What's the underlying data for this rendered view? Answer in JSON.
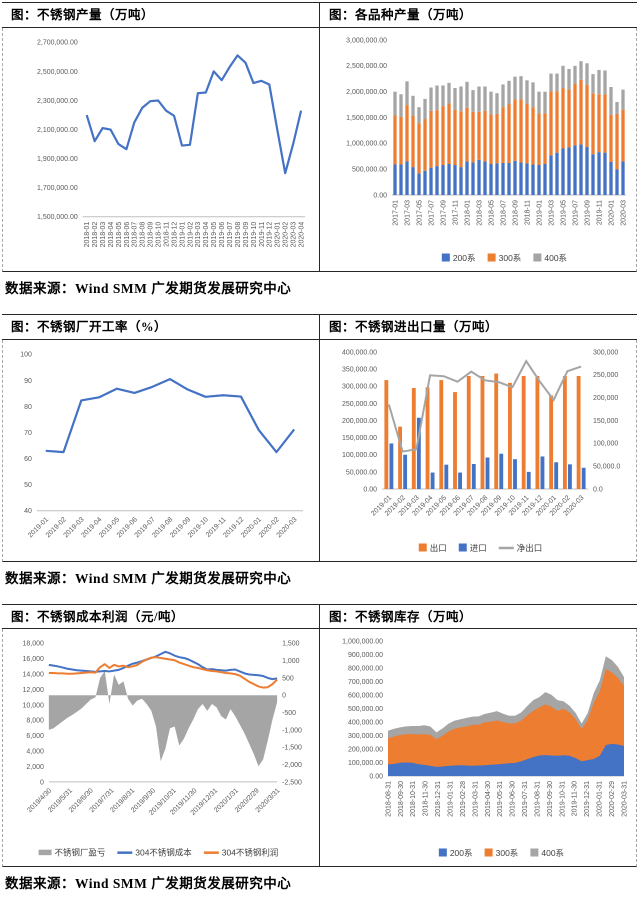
{
  "colors": {
    "blue": "#4472C4",
    "orange": "#ED7D31",
    "gray": "#A5A5A5",
    "axis_text": "#595959",
    "axis_line": "#BFBFBF"
  },
  "sections": [
    {
      "source": "数据来源：Wind SMM 广发期货发展研究中心"
    },
    {
      "source": "数据来源：Wind SMM 广发期货发展研究中心"
    },
    {
      "source": "数据来源：Wind SMM 广发期货发展研究中心"
    }
  ],
  "chart_data": [
    {
      "title": "图：不锈钢产量（万吨）",
      "type": "line",
      "x_rot": 90,
      "label_every": 1,
      "layout": {
        "margins": {
          "l": 80,
          "r": 14,
          "t": 14,
          "b": 54
        }
      },
      "categories": [
        "2018-01",
        "2018-02",
        "2018-03",
        "2018-04",
        "2018-05",
        "2018-06",
        "2018-07",
        "2018-08",
        "2018-09",
        "2018-10",
        "2018-11",
        "2018-12",
        "2019-01",
        "2019-02",
        "2019-03",
        "2019-04",
        "2019-05",
        "2019-06",
        "2019-07",
        "2019-08",
        "2019-09",
        "2019-10",
        "2019-11",
        "2019-12",
        "2020-01",
        "2020-02",
        "2020-03",
        "2020-04"
      ],
      "y_left": {
        "min": 1500000,
        "max": 2700000,
        "labels": [
          "2,700,000.00",
          "2,500,000.00",
          "2,300,000.00",
          "2,100,000.00",
          "1,900,000.00",
          "1,700,000.00",
          "1,500,000.00"
        ]
      },
      "series": [
        {
          "name": "不锈钢产量",
          "color": "blue",
          "values": [
            2200000,
            2020000,
            2110000,
            2100000,
            2000000,
            1965000,
            2150000,
            2250000,
            2295000,
            2300000,
            2230000,
            2195000,
            1990000,
            1995000,
            2350000,
            2355000,
            2500000,
            2440000,
            2530000,
            2610000,
            2560000,
            2420000,
            2435000,
            2410000,
            2100000,
            1800000,
            2000000,
            2230000
          ]
        }
      ],
      "legend": null
    },
    {
      "title": "图：各品种产量（万吨）",
      "type": "stacked_bar",
      "x_rot": 90,
      "label_every": 2,
      "layout": {
        "margins": {
          "l": 72,
          "r": 10,
          "t": 12,
          "b": 76
        }
      },
      "categories": [
        "2017-01",
        "2017-02",
        "2017-03",
        "2017-04",
        "2017-05",
        "2017-06",
        "2017-07",
        "2017-08",
        "2017-09",
        "2017-10",
        "2017-11",
        "2017-12",
        "2018-01",
        "2018-02",
        "2018-03",
        "2018-04",
        "2018-05",
        "2018-06",
        "2018-07",
        "2018-08",
        "2018-09",
        "2018-10",
        "2018-11",
        "2018-12",
        "2019-01",
        "2019-02",
        "2019-03",
        "2019-04",
        "2019-05",
        "2019-06",
        "2019-07",
        "2019-08",
        "2019-09",
        "2019-10",
        "2019-11",
        "2019-12",
        "2020-01",
        "2020-02",
        "2020-03"
      ],
      "x_labels": [
        "2017-01",
        "2017-03",
        "2017-05",
        "2017-07",
        "2017-09",
        "2017-11",
        "2018-01",
        "2018-03",
        "2018-05",
        "2018-07",
        "2018-09",
        "2018-11",
        "2019-01",
        "2019-03",
        "2019-05",
        "2019-07",
        "2019-09",
        "2019-11",
        "2020-01",
        "2020-03"
      ],
      "y_left": {
        "min": 0,
        "max": 3000000,
        "labels": [
          "3,000,000.00",
          "2,500,000.00",
          "2,000,000.00",
          "1,500,000.00",
          "1,000,000.00",
          "500,000.00",
          "0.00"
        ]
      },
      "series": [
        {
          "name": "200系",
          "color": "blue",
          "values": [
            590000,
            590000,
            650000,
            540000,
            420000,
            470000,
            530000,
            560000,
            580000,
            600000,
            580000,
            540000,
            650000,
            630000,
            680000,
            650000,
            600000,
            610000,
            620000,
            620000,
            660000,
            630000,
            610000,
            590000,
            580000,
            600000,
            770000,
            820000,
            900000,
            920000,
            960000,
            980000,
            930000,
            790000,
            830000,
            820000,
            640000,
            500000,
            650000
          ]
        },
        {
          "name": "300系",
          "color": "orange",
          "values": [
            950000,
            920000,
            1090000,
            990000,
            970000,
            1000000,
            1100000,
            1080000,
            1140000,
            1170000,
            1070000,
            1080000,
            1040000,
            980000,
            930000,
            980000,
            960000,
            960000,
            1080000,
            1140000,
            1190000,
            1220000,
            1160000,
            1110000,
            1000000,
            980000,
            1240000,
            1190000,
            1170000,
            1120000,
            1190000,
            1250000,
            1200000,
            1180000,
            1120000,
            1130000,
            910000,
            1070000,
            1000000
          ]
        },
        {
          "name": "400系",
          "color": "gray",
          "values": [
            460000,
            440000,
            460000,
            390000,
            310000,
            390000,
            450000,
            480000,
            400000,
            400000,
            420000,
            480000,
            500000,
            420000,
            490000,
            470000,
            440000,
            400000,
            440000,
            450000,
            440000,
            450000,
            450000,
            480000,
            420000,
            420000,
            340000,
            340000,
            430000,
            400000,
            350000,
            360000,
            420000,
            370000,
            470000,
            460000,
            540000,
            230000,
            390000
          ]
        }
      ],
      "legend": [
        {
          "label": "200系",
          "color": "blue",
          "swatch": "rect"
        },
        {
          "label": "300系",
          "color": "orange",
          "swatch": "rect"
        },
        {
          "label": "400系",
          "color": "gray",
          "swatch": "rect"
        }
      ]
    },
    {
      "title": "图：不锈钢厂开工率（%）",
      "type": "line",
      "x_rot": 45,
      "label_every": 1,
      "layout": {
        "margins": {
          "l": 34,
          "r": 16,
          "t": 14,
          "b": 50
        }
      },
      "categories": [
        "2019-01",
        "2019-02",
        "2019-03",
        "2019-04",
        "2019-05",
        "2019-06",
        "2019-07",
        "2019-08",
        "2019-09",
        "2019-10",
        "2019-11",
        "2019-12",
        "2020-01",
        "2020-02",
        "2020-03"
      ],
      "y_left": {
        "min": 40,
        "max": 100,
        "labels": [
          "100",
          "90",
          "80",
          "70",
          "60",
          "50",
          "40"
        ]
      },
      "series": [
        {
          "name": "开工率",
          "color": "blue",
          "values": [
            63,
            62.5,
            82.3,
            83.5,
            86.8,
            85.2,
            87.5,
            90.5,
            86.5,
            83.7,
            84.3,
            83.8,
            71,
            62.5,
            71.2
          ]
        }
      ],
      "legend": null
    },
    {
      "title": "图：不锈钢进出口量（万吨）",
      "type": "combo_bar_line",
      "x_rot": 45,
      "label_every": 1,
      "layout": {
        "margins": {
          "l": 62,
          "r": 48,
          "t": 12,
          "b": 72
        }
      },
      "categories": [
        "2019-01",
        "2019-02",
        "2019-03",
        "2019-04",
        "2019-05",
        "2019-06",
        "2019-07",
        "2019-08",
        "2019-09",
        "2019-10",
        "2019-11",
        "2019-12",
        "2020-01",
        "2020-02",
        "2020-03"
      ],
      "y_left": {
        "min": 0,
        "max": 400000,
        "labels": [
          "400,000.00",
          "350,000.00",
          "300,000.00",
          "250,000.00",
          "200,000.00",
          "150,000.00",
          "100,000.00",
          "50,000.00",
          "0.00"
        ]
      },
      "y_right": {
        "min": 0,
        "max": 300000,
        "labels": [
          "300,000",
          "250,000",
          "200,000",
          "150,000",
          "100,000",
          "50,000.0",
          "0.0"
        ]
      },
      "series": [
        {
          "name": "出口",
          "kind": "bar",
          "color": "orange",
          "values": [
            318000,
            182000,
            295000,
            297000,
            318000,
            283000,
            330000,
            330000,
            337000,
            310000,
            330000,
            330000,
            273000,
            330000,
            330000
          ]
        },
        {
          "name": "进口",
          "kind": "bar",
          "color": "blue",
          "values": [
            133000,
            100000,
            208000,
            48000,
            71000,
            48000,
            73000,
            92000,
            103000,
            87000,
            50000,
            95000,
            78000,
            72000,
            62000
          ]
        },
        {
          "name": "净出口",
          "kind": "line",
          "axis": "right",
          "color": "gray",
          "values": [
            185000,
            82000,
            87000,
            249000,
            247000,
            235000,
            257000,
            238000,
            234000,
            223000,
            280000,
            235000,
            195000,
            258000,
            268000
          ]
        }
      ],
      "legend": [
        {
          "label": "出口",
          "color": "orange",
          "swatch": "rect"
        },
        {
          "label": "进口",
          "color": "blue",
          "swatch": "rect"
        },
        {
          "label": "净出口",
          "color": "gray",
          "swatch": "line"
        }
      ]
    },
    {
      "title": "图：不锈钢成本利润（元/吨）",
      "type": "area_dual_line",
      "x_rot": 45,
      "x_mode": "edge",
      "layout": {
        "margins": {
          "l": 46,
          "r": 42,
          "t": 14,
          "b": 84
        }
      },
      "x_labels": [
        "2019/4/30",
        "2019/5/31",
        "2019/6/30",
        "2019/7/31",
        "2019/8/31",
        "2019/9/30",
        "2019/10/31",
        "2019/11/30",
        "2019/12/31",
        "2020/1/31",
        "2020/2/29",
        "2020/3/31"
      ],
      "y_left": {
        "min": 0,
        "max": 18000,
        "labels": [
          "18,000",
          "16,000",
          "14,000",
          "12,000",
          "10,000",
          "8,000",
          "6,000",
          "4,000",
          "2,000",
          "0"
        ]
      },
      "y_right": {
        "min": -2500,
        "max": 1500,
        "labels": [
          "1,500",
          "1,000",
          "500",
          "0",
          "-500",
          "-1,000",
          "-1,500",
          "-2,000",
          "-2,500"
        ]
      },
      "series": [
        {
          "name": "不锈钢厂盈亏",
          "kind": "area",
          "axis": "right",
          "color": "gray",
          "values": [
            -1000,
            -950,
            -850,
            -750,
            -650,
            -570,
            -480,
            -380,
            -250,
            -120,
            -60,
            500,
            700,
            -250,
            600,
            300,
            400,
            -100,
            -300,
            -150,
            -100,
            -250,
            -450,
            -900,
            -1900,
            -1550,
            -950,
            -900,
            -1450,
            -1250,
            -950,
            -700,
            -400,
            -250,
            -450,
            -250,
            -350,
            -600,
            -700,
            -400,
            -600,
            -850,
            -1100,
            -1400,
            -1700,
            -2050,
            -1850,
            -1300,
            -700,
            -200
          ]
        },
        {
          "name": "304不锈钢成本",
          "kind": "line",
          "color": "blue",
          "values": [
            15200,
            15100,
            15000,
            14850,
            14700,
            14600,
            14500,
            14450,
            14400,
            14350,
            14300,
            14350,
            14400,
            14350,
            14450,
            14550,
            14800,
            15100,
            15350,
            15500,
            15700,
            15900,
            16100,
            16300,
            16600,
            16900,
            16700,
            16400,
            16200,
            16100,
            15900,
            15600,
            15300,
            14900,
            14600,
            14650,
            14550,
            14500,
            14450,
            14550,
            14600,
            14350,
            14100,
            13950,
            13900,
            13850,
            13750,
            13500,
            13350,
            13450
          ]
        },
        {
          "name": "304不锈钢利润",
          "kind": "line",
          "color": "orange",
          "values": [
            14150,
            14150,
            14100,
            14100,
            14050,
            14050,
            14100,
            14150,
            14200,
            14250,
            14200,
            14900,
            15300,
            14800,
            15200,
            15000,
            15100,
            14900,
            15000,
            15200,
            15600,
            15900,
            16150,
            16200,
            16100,
            16000,
            15900,
            15800,
            15500,
            15300,
            15100,
            14900,
            14800,
            14650,
            14500,
            14400,
            14350,
            14250,
            14150,
            14100,
            14000,
            13800,
            13400,
            13000,
            12700,
            12400,
            12250,
            12300,
            12700,
            13300
          ]
        }
      ],
      "legend": [
        {
          "label": "不锈钢厂盈亏",
          "color": "gray",
          "swatch": "area"
        },
        {
          "label": "304不锈钢成本",
          "color": "blue",
          "swatch": "line"
        },
        {
          "label": "304不锈钢利润",
          "color": "orange",
          "swatch": "line"
        }
      ]
    },
    {
      "title": "图：不锈钢库存（万吨）",
      "type": "stacked_area",
      "x_rot": 90,
      "x_mode": "edge",
      "layout": {
        "margins": {
          "l": 68,
          "r": 12,
          "t": 12,
          "b": 90
        }
      },
      "x_labels": [
        "2018-08-31",
        "2018-09-30",
        "2018-10-31",
        "2018-11-30",
        "2018-12-31",
        "2019-01-31",
        "2019-02-28",
        "2019-03-31",
        "2019-04-30",
        "2019-05-31",
        "2019-06-30",
        "2019-07-31",
        "2019-08-31",
        "2019-09-30",
        "2019-10-31",
        "2019-11-30",
        "2019-12-31",
        "2020-01-31",
        "2020-02-29",
        "2020-03-31"
      ],
      "y_left": {
        "min": 0,
        "max": 1000000,
        "labels": [
          "1,000,000.00",
          "900,000.00",
          "800,000.00",
          "700,000.00",
          "600,000.00",
          "500,000.00",
          "400,000.00",
          "300,000.00",
          "200,000.00",
          "100,000.00",
          "0.00"
        ]
      },
      "series": [
        {
          "name": "200系",
          "color": "blue",
          "values": [
            85000,
            90000,
            98000,
            100000,
            98000,
            88000,
            82000,
            75000,
            68000,
            70000,
            75000,
            78000,
            80000,
            78000,
            76000,
            78000,
            80000,
            83000,
            86000,
            90000,
            94000,
            97000,
            108000,
            125000,
            140000,
            152000,
            155000,
            152000,
            150000,
            154000,
            150000,
            132000,
            108000,
            118000,
            126000,
            150000,
            230000,
            238000,
            233000,
            222000
          ]
        },
        {
          "name": "300系",
          "color": "orange",
          "values": [
            195000,
            203000,
            206000,
            210000,
            212000,
            220000,
            228000,
            230000,
            205000,
            228000,
            255000,
            272000,
            280000,
            290000,
            304000,
            302000,
            318000,
            320000,
            325000,
            310000,
            296000,
            294000,
            302000,
            325000,
            342000,
            356000,
            376000,
            362000,
            332000,
            344000,
            320000,
            290000,
            240000,
            298000,
            418000,
            478000,
            562000,
            530000,
            495000,
            445000
          ]
        },
        {
          "name": "400系",
          "color": "gray",
          "values": [
            55000,
            57000,
            56000,
            58000,
            60000,
            62000,
            66000,
            62000,
            50000,
            54000,
            58000,
            60000,
            60000,
            63000,
            60000,
            62000,
            62000,
            66000,
            70000,
            62000,
            56000,
            55000,
            60000,
            68000,
            80000,
            76000,
            90000,
            88000,
            80000,
            56000,
            50000,
            46000,
            40000,
            50000,
            70000,
            80000,
            95000,
            90000,
            80000,
            65000
          ]
        }
      ],
      "legend": [
        {
          "label": "200系",
          "color": "blue",
          "swatch": "rect"
        },
        {
          "label": "300系",
          "color": "orange",
          "swatch": "rect"
        },
        {
          "label": "400系",
          "color": "gray",
          "swatch": "rect"
        }
      ]
    }
  ]
}
